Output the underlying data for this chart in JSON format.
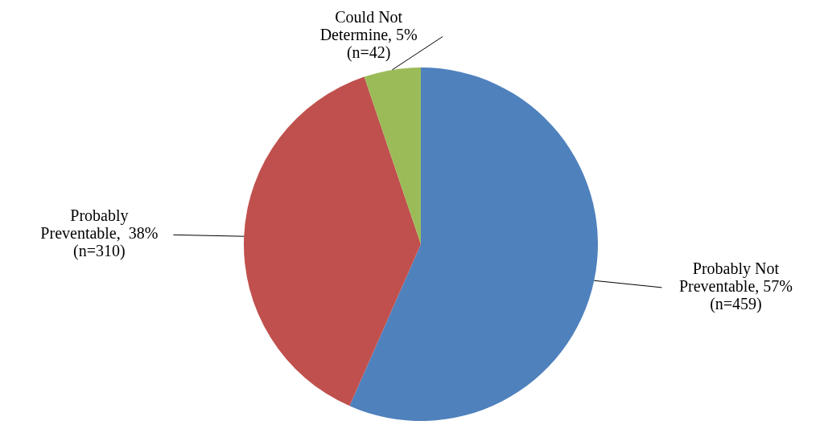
{
  "chart_data": {
    "type": "pie",
    "categories": [
      "Probably Not Preventable, 57% (n=459)",
      "Probably Preventable,  38% (n=310)",
      "Could Not Determine, 5% (n=42)"
    ],
    "values": [
      459,
      310,
      42
    ],
    "colors": [
      "#4f81bd",
      "#c0504d",
      "#9bbb59"
    ],
    "legend": false
  }
}
